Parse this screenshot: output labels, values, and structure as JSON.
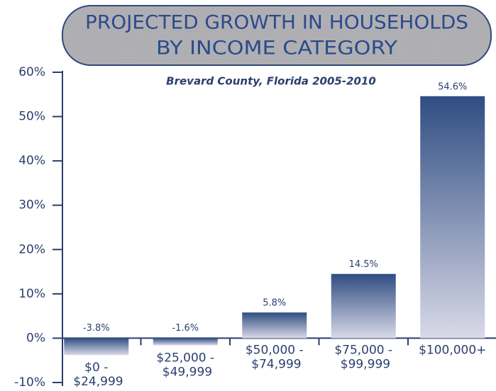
{
  "chart_data": {
    "type": "bar",
    "title": [
      "PROJECTED GROWTH IN HOUSEHOLDS",
      "BY INCOME CATEGORY"
    ],
    "subtitle": "Brevard County, Florida 2005-2010",
    "categories": [
      "$0 - $24,999",
      "$25,000 - $49,999",
      "$50,000 - $74,999",
      "$75,000 - $99,999",
      "$100,000+"
    ],
    "values": [
      -3.8,
      -1.6,
      5.8,
      14.5,
      54.6
    ],
    "value_labels": [
      "-3.8%",
      "-1.6%",
      "5.8%",
      "14.5%",
      "54.6%"
    ],
    "color": "#2f4d82",
    "ylim": [
      -10,
      60
    ],
    "yticks": [
      {
        "value": -10,
        "label": "-10%"
      },
      {
        "value": 0,
        "label": "0%"
      },
      {
        "value": 10,
        "label": "10%"
      },
      {
        "value": 20,
        "label": "20%"
      },
      {
        "value": 30,
        "label": "30%"
      },
      {
        "value": 40,
        "label": "40%"
      },
      {
        "value": 50,
        "label": "50%"
      },
      {
        "value": 60,
        "label": "60%"
      }
    ],
    "grid": false
  }
}
